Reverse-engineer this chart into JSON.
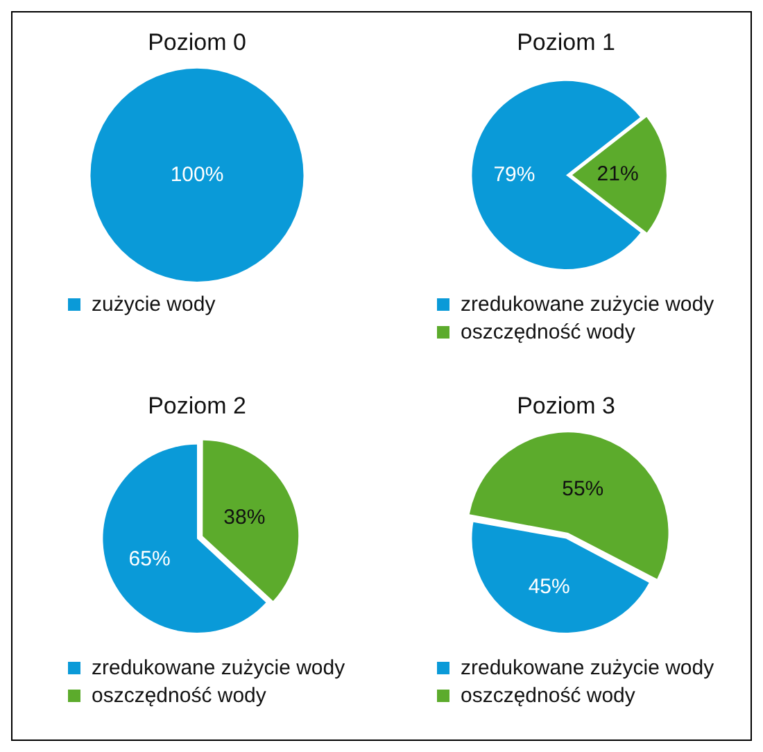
{
  "chart_data": [
    {
      "type": "pie",
      "title": "Poziom 0",
      "categories": [
        "zużycie wody"
      ],
      "values": [
        100
      ],
      "colors": [
        "#0a9ad8"
      ],
      "value_labels": [
        "100%"
      ],
      "legend": "bottom"
    },
    {
      "type": "pie",
      "title": "Poziom 1",
      "categories": [
        "zredukowane zużycie wody",
        "oszczędność wody"
      ],
      "values": [
        79,
        21
      ],
      "colors": [
        "#0a9ad8",
        "#5cab2c"
      ],
      "value_labels": [
        "79%",
        "21%"
      ],
      "legend": "bottom"
    },
    {
      "type": "pie",
      "title": "Poziom 2",
      "categories": [
        "zredukowane zużycie wody",
        "oszczędność wody"
      ],
      "values": [
        65,
        38
      ],
      "colors": [
        "#0a9ad8",
        "#5cab2c"
      ],
      "value_labels": [
        "65%",
        "38%"
      ],
      "legend": "bottom"
    },
    {
      "type": "pie",
      "title": "Poziom 3",
      "categories": [
        "zredukowane zużycie wody",
        "oszczędność wody"
      ],
      "values": [
        45,
        55
      ],
      "colors": [
        "#0a9ad8",
        "#5cab2c"
      ],
      "value_labels": [
        "45%",
        "55%"
      ],
      "legend": "bottom"
    }
  ]
}
